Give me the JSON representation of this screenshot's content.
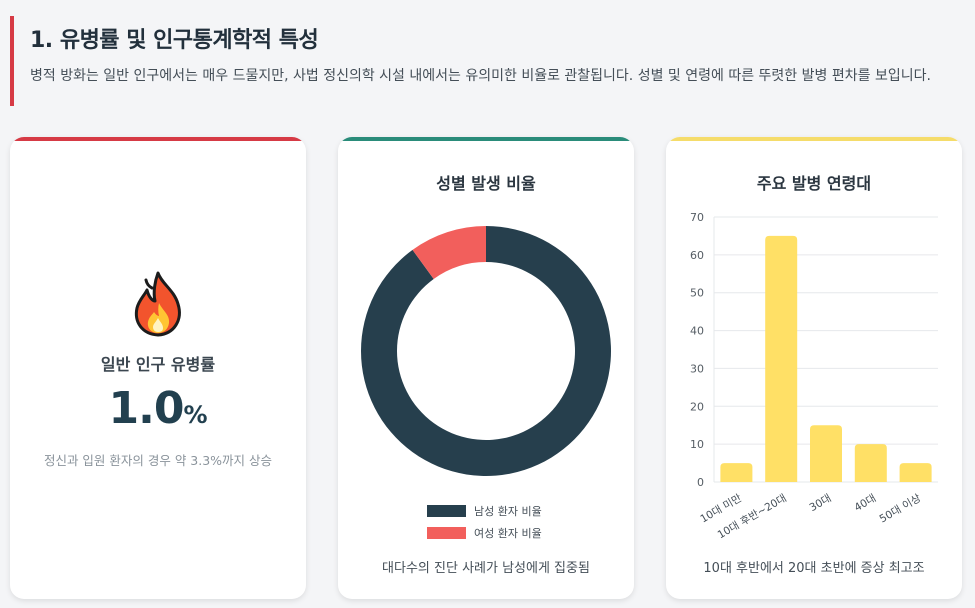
{
  "section": {
    "title": "1. 유병률 및 인구통계학적 특성",
    "description": "병적 방화는 일반 인구에서는 매우 드물지만, 사법 정신의학 시설 내에서는 유의미한 비율로 관찰됩니다. 성별 및 연령에 따른 뚜렷한 발병 편차를 보입니다.",
    "accent": "#d63a45"
  },
  "cards": {
    "prevalence": {
      "label": "일반 인구 유병률",
      "number": "1.0",
      "unit": "%",
      "note": "정신과 입원 환자의 경우 약 3.3%까지 상승",
      "icon": "fire-icon",
      "accent": "#d63a45"
    },
    "gender": {
      "title": "성별 발생 비율",
      "footer": "대다수의 진단 사례가 남성에게 집중됨",
      "accent": "#2a8c7a"
    },
    "age": {
      "title": "주요 발병 연령대",
      "footer": "10대 후반에서 20대 초반에 증상 최고조",
      "accent": "#f5dc6a"
    }
  },
  "chart_data": [
    {
      "type": "pie",
      "title": "성별 발생 비율",
      "categories": [
        "남성 환자 비율",
        "여성 환자 비율"
      ],
      "values": [
        90,
        10
      ],
      "colors": [
        "#263f4d",
        "#f25f5c"
      ],
      "legend": "bottom"
    },
    {
      "type": "bar",
      "title": "주요 발병 연령대",
      "categories": [
        "10대 미만",
        "10대 후반~20대",
        "30대",
        "40대",
        "50대 이상"
      ],
      "values": [
        5,
        65,
        15,
        10,
        5
      ],
      "ylim": [
        0,
        70
      ],
      "yticks": [
        0,
        10,
        20,
        30,
        40,
        50,
        60,
        70
      ],
      "color": "#ffe066",
      "grid": true
    }
  ]
}
